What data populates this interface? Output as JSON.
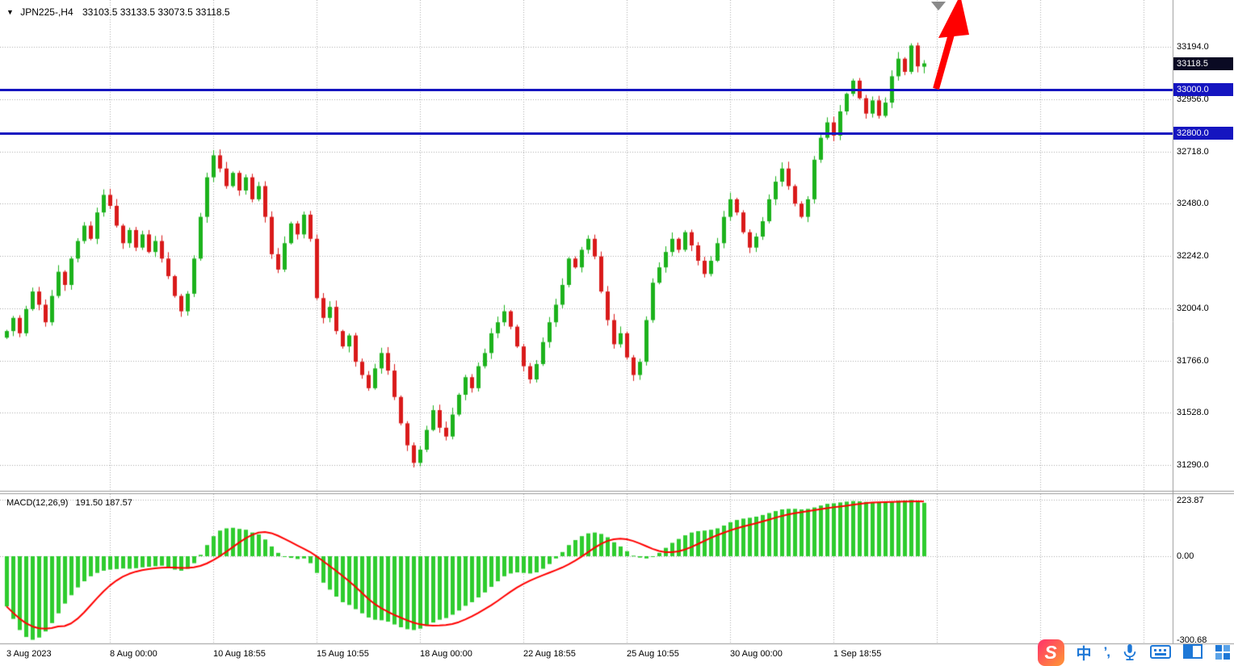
{
  "header": {
    "symbol_tf": "JPN225-,H4",
    "ohlc": "33103.5 33133.5 33073.5 33118.5"
  },
  "price_axis": {
    "bid": {
      "label": "33118.5"
    },
    "levels": [
      {
        "label": "33000.0",
        "value": 33000.0
      },
      {
        "label": "32800.0",
        "value": 32800.0
      }
    ]
  },
  "macd_panel": {
    "label": "MACD(12,26,9)",
    "values": "191.50 187.57"
  },
  "taskbar": {
    "skype_letter": "S",
    "ime_lang": "中",
    "ime_punct": "’,"
  },
  "colors": {
    "bull": "#1cb21c",
    "bear": "#d91a1a",
    "histogram": "#2ecc2e",
    "signal": "#ff0000",
    "level": "#1515c0",
    "bid_box": "#0a0a23",
    "grid": "#aaaaaa",
    "arrow": "#ff0000",
    "taskbar_blue": "#1e78d7"
  },
  "chart_data": [
    {
      "type": "candlestick",
      "symbol": "JPN225-",
      "timeframe": "H4",
      "title": "JPN225-,H4",
      "ohlc_display": {
        "open": 33103.5,
        "high": 33133.5,
        "low": 33073.5,
        "close": 33118.5
      },
      "y_ticks": [
        33194.0,
        32956.0,
        32718.0,
        32480.0,
        32242.0,
        32004.0,
        31766.0,
        31528.0,
        31290.0
      ],
      "ylim_visible": [
        31170,
        33410
      ],
      "x_labels": [
        "3 Aug 2023",
        "8 Aug 00:00",
        "10 Aug 18:55",
        "15 Aug 10:55",
        "18 Aug 00:00",
        "22 Aug 18:55",
        "25 Aug 10:55",
        "30 Aug 00:00",
        "1 Sep 18:55"
      ],
      "horizontal_levels": [
        33000.0,
        32800.0
      ],
      "annotations": [
        "red-up-arrow near last bars pointing to new highs"
      ],
      "grid": true,
      "first_open": 31870,
      "closes": [
        31900,
        31960,
        31890,
        32000,
        32080,
        32020,
        31940,
        32060,
        32170,
        32110,
        32230,
        32310,
        32380,
        32320,
        32440,
        32520,
        32470,
        32380,
        32300,
        32360,
        32280,
        32340,
        32260,
        32310,
        32230,
        32150,
        32060,
        31990,
        32070,
        32230,
        32420,
        32600,
        32700,
        32640,
        32560,
        32620,
        32540,
        32600,
        32500,
        32560,
        32420,
        32250,
        32180,
        32300,
        32390,
        32340,
        32430,
        32320,
        32050,
        31960,
        32010,
        31900,
        31830,
        31880,
        31760,
        31700,
        31640,
        31730,
        31800,
        31720,
        31600,
        31480,
        31380,
        31300,
        31360,
        31450,
        31540,
        31460,
        31420,
        31520,
        31610,
        31690,
        31640,
        31740,
        31800,
        31890,
        31940,
        31990,
        31920,
        31830,
        31740,
        31680,
        31750,
        31850,
        31940,
        32020,
        32110,
        32230,
        32190,
        32270,
        32320,
        32240,
        32080,
        31950,
        31840,
        31890,
        31780,
        31700,
        31760,
        31950,
        32120,
        32190,
        32260,
        32320,
        32270,
        32350,
        32290,
        32220,
        32160,
        32220,
        32300,
        32420,
        32500,
        32440,
        32350,
        32280,
        32330,
        32400,
        32500,
        32580,
        32640,
        32560,
        32480,
        32420,
        32500,
        32680,
        32780,
        32850,
        32790,
        32900,
        32980,
        33040,
        32960,
        32890,
        32950,
        32880,
        32940,
        33060,
        33140,
        33080,
        33200,
        33105,
        33118.5
      ]
    },
    {
      "type": "bar",
      "name": "MACD(12,26,9)",
      "macd_value": 191.5,
      "signal_value": 187.57,
      "signal_period": 9,
      "y_ticks": [
        223.87,
        0.0,
        -300.68
      ],
      "histogram": [
        -180,
        -225,
        -265,
        -290,
        -300,
        -292,
        -270,
        -240,
        -205,
        -170,
        -140,
        -112,
        -90,
        -72,
        -60,
        -52,
        -48,
        -46,
        -44,
        -45,
        -43,
        -40,
        -38,
        -36,
        -34,
        -40,
        -48,
        -52,
        -45,
        -25,
        5,
        40,
        72,
        92,
        100,
        102,
        98,
        95,
        85,
        78,
        60,
        35,
        12,
        0,
        -6,
        -10,
        -8,
        -25,
        -60,
        -95,
        -120,
        -145,
        -165,
        -175,
        -190,
        -205,
        -220,
        -228,
        -230,
        -235,
        -245,
        -255,
        -262,
        -265,
        -260,
        -250,
        -238,
        -228,
        -222,
        -210,
        -195,
        -178,
        -165,
        -148,
        -130,
        -110,
        -90,
        -72,
        -62,
        -58,
        -60,
        -62,
        -58,
        -45,
        -28,
        -8,
        15,
        40,
        58,
        72,
        82,
        85,
        80,
        68,
        50,
        35,
        18,
        2,
        -5,
        -8,
        -2,
        12,
        30,
        48,
        62,
        75,
        85,
        90,
        92,
        95,
        100,
        110,
        122,
        130,
        135,
        138,
        142,
        148,
        155,
        162,
        168,
        170,
        170,
        168,
        170,
        175,
        182,
        188,
        190,
        193,
        196,
        198,
        197,
        195,
        194,
        193,
        194,
        196,
        199,
        200,
        202,
        198,
        191.5
      ]
    }
  ]
}
